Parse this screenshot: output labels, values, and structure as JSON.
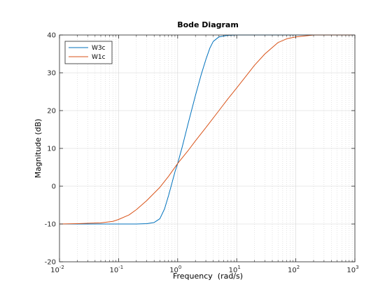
{
  "chart_data": {
    "type": "line",
    "title": "Bode Diagram",
    "xlabel": "Frequency  (rad/s)",
    "ylabel": "Magnitude (dB)",
    "xscale": "log",
    "xlim": [
      0.01,
      1000
    ],
    "ylim": [
      -20,
      40
    ],
    "x_tick_labels": [
      {
        "base": "10",
        "exp": "-2"
      },
      {
        "base": "10",
        "exp": "-1"
      },
      {
        "base": "10",
        "exp": "0"
      },
      {
        "base": "10",
        "exp": "1"
      },
      {
        "base": "10",
        "exp": "2"
      },
      {
        "base": "10",
        "exp": "3"
      }
    ],
    "y_ticks": [
      -20,
      -10,
      0,
      10,
      20,
      30,
      40
    ],
    "grid": true,
    "minor_grid": true,
    "legend_position": "top-left",
    "series": [
      {
        "name": "W3c",
        "color": "#0072bd",
        "points": [
          [
            0.01,
            -10
          ],
          [
            0.02,
            -10
          ],
          [
            0.05,
            -10
          ],
          [
            0.1,
            -10
          ],
          [
            0.2,
            -10
          ],
          [
            0.3,
            -9.9
          ],
          [
            0.4,
            -9.6
          ],
          [
            0.5,
            -8.6
          ],
          [
            0.6,
            -6.0
          ],
          [
            0.7,
            -2.5
          ],
          [
            0.8,
            0.8
          ],
          [
            0.9,
            3.8
          ],
          [
            1.0,
            6.0
          ],
          [
            1.2,
            10.5
          ],
          [
            1.5,
            16.5
          ],
          [
            2.0,
            24.0
          ],
          [
            2.5,
            29.5
          ],
          [
            3.0,
            33.5
          ],
          [
            3.5,
            36.5
          ],
          [
            4.0,
            38.3
          ],
          [
            5.0,
            39.5
          ],
          [
            7.0,
            39.9
          ],
          [
            10,
            40
          ],
          [
            50,
            40
          ],
          [
            100,
            40
          ],
          [
            1000,
            40
          ]
        ]
      },
      {
        "name": "W1c",
        "color": "#d95319",
        "points": [
          [
            0.01,
            -10
          ],
          [
            0.02,
            -9.9
          ],
          [
            0.05,
            -9.7
          ],
          [
            0.08,
            -9.3
          ],
          [
            0.1,
            -8.8
          ],
          [
            0.15,
            -7.6
          ],
          [
            0.2,
            -6.2
          ],
          [
            0.3,
            -3.8
          ],
          [
            0.5,
            -0.3
          ],
          [
            0.7,
            2.6
          ],
          [
            1.0,
            6.0
          ],
          [
            1.5,
            9.4
          ],
          [
            2.0,
            12.0
          ],
          [
            3.0,
            15.5
          ],
          [
            5.0,
            20.0
          ],
          [
            7.0,
            23.0
          ],
          [
            10,
            26.0
          ],
          [
            15,
            29.5
          ],
          [
            20,
            32.0
          ],
          [
            30,
            35.0
          ],
          [
            50,
            38.0
          ],
          [
            70,
            39.0
          ],
          [
            100,
            39.5
          ],
          [
            200,
            40
          ],
          [
            500,
            40
          ],
          [
            1000,
            40
          ]
        ]
      }
    ]
  }
}
